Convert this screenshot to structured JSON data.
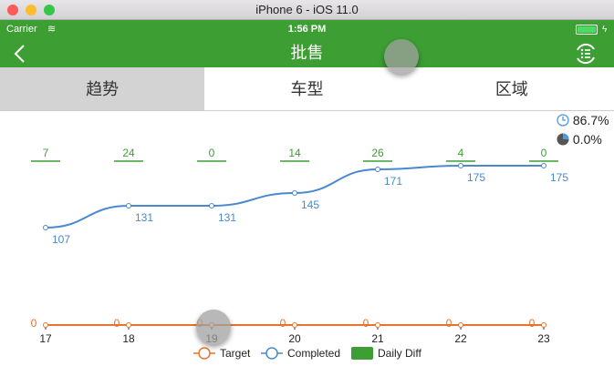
{
  "window": {
    "title": "iPhone 6 - iOS 11.0"
  },
  "status_bar": {
    "carrier": "Carrier",
    "time": "1:56 PM"
  },
  "nav": {
    "title": "批售",
    "back_icon": "chevron-left-icon",
    "menu_icon": "list-refresh-icon"
  },
  "tabs": [
    {
      "label": "趋势",
      "active": true
    },
    {
      "label": "车型",
      "active": false
    },
    {
      "label": "区域",
      "active": false
    }
  ],
  "stats": {
    "time_progress": "86.7%",
    "completion": "0.0%"
  },
  "colors": {
    "green": "#3c9e33",
    "target": "#e8732c",
    "completed": "#4a88d0"
  },
  "chart_data": {
    "type": "line",
    "categories": [
      "17",
      "18",
      "19",
      "20",
      "21",
      "22",
      "23"
    ],
    "series": [
      {
        "name": "Target",
        "values": [
          0,
          0,
          0,
          0,
          0,
          0,
          0
        ]
      },
      {
        "name": "Completed",
        "values": [
          107,
          131,
          131,
          145,
          171,
          175,
          175
        ]
      },
      {
        "name": "Daily Diff",
        "values": [
          7,
          24,
          0,
          14,
          26,
          4,
          0
        ]
      }
    ],
    "legend": [
      "Target",
      "Completed",
      "Daily Diff"
    ],
    "legend_position": "bottom"
  }
}
